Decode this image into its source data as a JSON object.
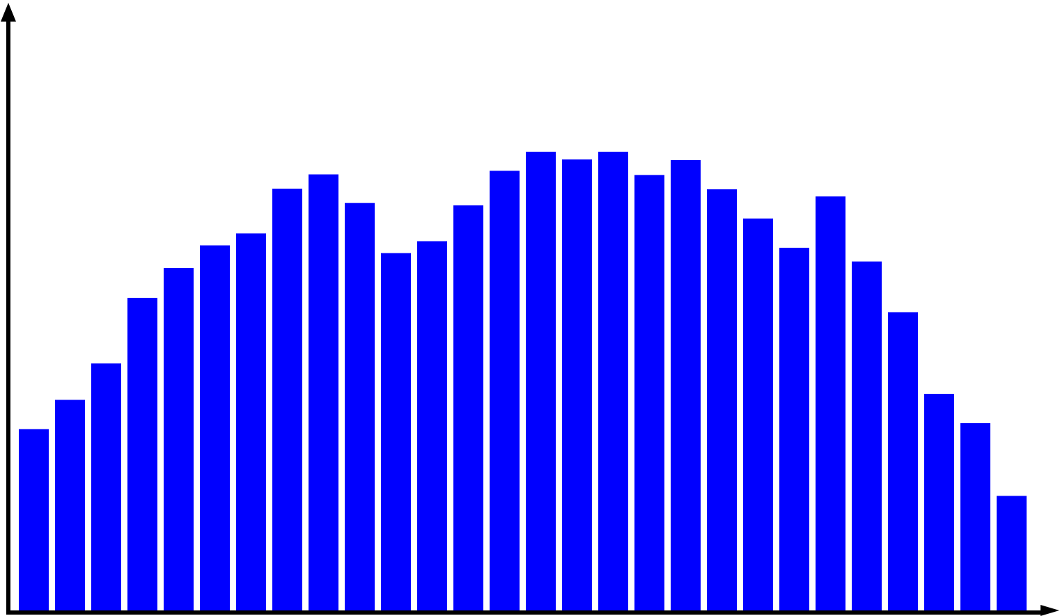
{
  "chart_data": {
    "type": "bar",
    "title": "",
    "xlabel": "",
    "ylabel": "",
    "bar_color": "#0000ff",
    "axis_color": "#000000",
    "ylim": [
      0,
      100
    ],
    "grid": false,
    "values": [
      30.4,
      35.3,
      41.4,
      52.4,
      57.4,
      61.2,
      63.2,
      70.7,
      73.1,
      68.3,
      59.9,
      61.9,
      67.9,
      73.7,
      76.9,
      75.6,
      76.9,
      73.0,
      75.5,
      70.6,
      65.7,
      60.8,
      69.4,
      58.5,
      50.0,
      36.3,
      31.4,
      19.2
    ]
  }
}
